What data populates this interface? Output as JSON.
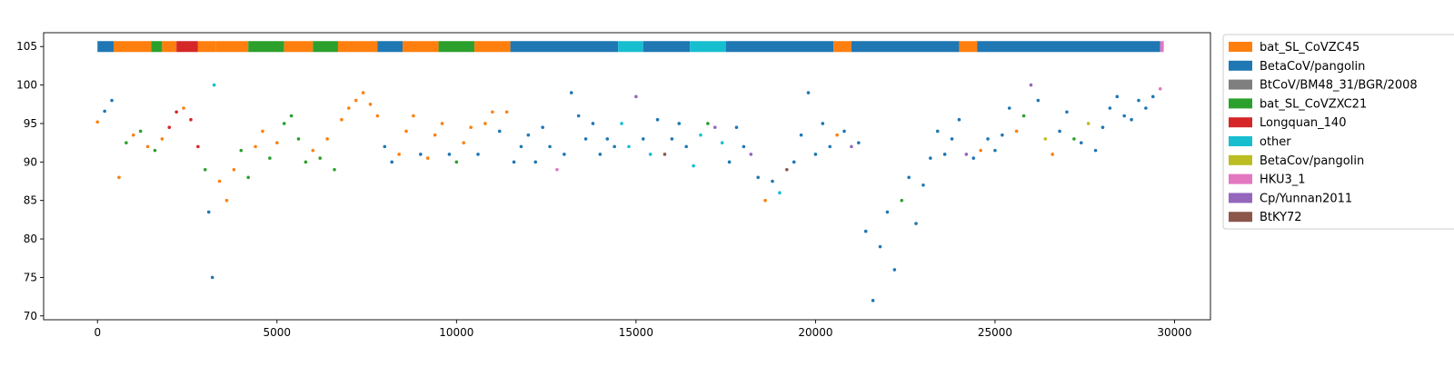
{
  "chart_data": {
    "type": "scatter",
    "title": "",
    "xlabel": "",
    "ylabel": "",
    "xlim": [
      -1500,
      31000
    ],
    "ylim": [
      69.5,
      106.8
    ],
    "xticks": [
      0,
      5000,
      10000,
      15000,
      20000,
      25000,
      30000
    ],
    "yticks": [
      70,
      75,
      80,
      85,
      90,
      95,
      100,
      105
    ],
    "legend_position": "outside-right",
    "grid": false,
    "series": [
      {
        "name": "bat_SL_CoVZC45",
        "color": "#ff7f0e"
      },
      {
        "name": "BetaCoV/pangolin",
        "color": "#1f77b4"
      },
      {
        "name": "BtCoV/BM48_31/BGR/2008",
        "color": "#7f7f7f"
      },
      {
        "name": "bat_SL_CoVZXC21",
        "color": "#2ca02c"
      },
      {
        "name": "Longquan_140",
        "color": "#d62728"
      },
      {
        "name": "other",
        "color": "#17becf"
      },
      {
        "name": "BetaCov/pangolin",
        "color": "#bcbd22"
      },
      {
        "name": "HKU3_1",
        "color": "#e377c2"
      },
      {
        "name": "Cp/Yunnan2011",
        "color": "#9467bd"
      },
      {
        "name": "BtKY72",
        "color": "#8c564b"
      }
    ],
    "bar_level": 105,
    "bar_segments": [
      [
        0,
        450,
        1
      ],
      [
        450,
        1500,
        0
      ],
      [
        1500,
        1800,
        3
      ],
      [
        1800,
        2200,
        0
      ],
      [
        2200,
        2800,
        4
      ],
      [
        2800,
        3300,
        0
      ],
      [
        3300,
        4200,
        0
      ],
      [
        4200,
        5200,
        3
      ],
      [
        5200,
        6000,
        0
      ],
      [
        6000,
        6700,
        3
      ],
      [
        6700,
        7800,
        0
      ],
      [
        7800,
        8500,
        1
      ],
      [
        8500,
        9500,
        0
      ],
      [
        9500,
        10500,
        3
      ],
      [
        10500,
        11500,
        0
      ],
      [
        11500,
        14500,
        1
      ],
      [
        14500,
        15200,
        5
      ],
      [
        15200,
        16500,
        1
      ],
      [
        16500,
        17500,
        5
      ],
      [
        17500,
        20500,
        1
      ],
      [
        20500,
        21000,
        0
      ],
      [
        21000,
        24000,
        1
      ],
      [
        24000,
        24500,
        0
      ],
      [
        24500,
        29600,
        1
      ],
      [
        29600,
        29700,
        7
      ]
    ],
    "points": [
      [
        0,
        95.2,
        0
      ],
      [
        200,
        96.6,
        1
      ],
      [
        400,
        98.0,
        1
      ],
      [
        600,
        88.0,
        0
      ],
      [
        800,
        92.5,
        3
      ],
      [
        1000,
        93.5,
        0
      ],
      [
        1200,
        94.0,
        3
      ],
      [
        1400,
        92.0,
        0
      ],
      [
        1600,
        91.5,
        3
      ],
      [
        1800,
        93.0,
        0
      ],
      [
        2000,
        94.5,
        4
      ],
      [
        2200,
        96.5,
        4
      ],
      [
        2400,
        97.0,
        0
      ],
      [
        2600,
        95.5,
        4
      ],
      [
        2800,
        92.0,
        4
      ],
      [
        3000,
        89.0,
        3
      ],
      [
        3100,
        83.5,
        1
      ],
      [
        3200,
        75.0,
        1
      ],
      [
        3250,
        100.0,
        5
      ],
      [
        3400,
        87.5,
        0
      ],
      [
        3600,
        85.0,
        0
      ],
      [
        3800,
        89.0,
        0
      ],
      [
        4000,
        91.5,
        3
      ],
      [
        4200,
        88.0,
        3
      ],
      [
        4400,
        92.0,
        0
      ],
      [
        4600,
        94.0,
        0
      ],
      [
        4800,
        90.5,
        3
      ],
      [
        5000,
        92.5,
        0
      ],
      [
        5200,
        95.0,
        3
      ],
      [
        5400,
        96.0,
        3
      ],
      [
        5600,
        93.0,
        3
      ],
      [
        5800,
        90.0,
        3
      ],
      [
        6000,
        91.5,
        0
      ],
      [
        6200,
        90.5,
        3
      ],
      [
        6400,
        93.0,
        0
      ],
      [
        6600,
        89.0,
        3
      ],
      [
        6800,
        95.5,
        0
      ],
      [
        7000,
        97.0,
        0
      ],
      [
        7200,
        98.0,
        0
      ],
      [
        7400,
        99.0,
        0
      ],
      [
        7600,
        97.5,
        0
      ],
      [
        7800,
        96.0,
        0
      ],
      [
        8000,
        92.0,
        1
      ],
      [
        8200,
        90.0,
        1
      ],
      [
        8400,
        91.0,
        0
      ],
      [
        8600,
        94.0,
        0
      ],
      [
        8800,
        96.0,
        0
      ],
      [
        9000,
        91.0,
        1
      ],
      [
        9200,
        90.5,
        0
      ],
      [
        9400,
        93.5,
        0
      ],
      [
        9600,
        95.0,
        0
      ],
      [
        9800,
        91.0,
        1
      ],
      [
        10000,
        90.0,
        3
      ],
      [
        10200,
        92.5,
        0
      ],
      [
        10400,
        94.5,
        0
      ],
      [
        10600,
        91.0,
        1
      ],
      [
        10800,
        95.0,
        0
      ],
      [
        11000,
        96.5,
        0
      ],
      [
        11200,
        94.0,
        1
      ],
      [
        11400,
        96.5,
        0
      ],
      [
        11600,
        90.0,
        1
      ],
      [
        11800,
        92.0,
        1
      ],
      [
        12000,
        93.5,
        1
      ],
      [
        12200,
        90.0,
        1
      ],
      [
        12400,
        94.5,
        1
      ],
      [
        12600,
        92.0,
        1
      ],
      [
        12800,
        89.0,
        7
      ],
      [
        13000,
        91.0,
        1
      ],
      [
        13200,
        99.0,
        1
      ],
      [
        13400,
        96.0,
        1
      ],
      [
        13600,
        93.0,
        1
      ],
      [
        13800,
        95.0,
        1
      ],
      [
        14000,
        91.0,
        1
      ],
      [
        14200,
        93.0,
        1
      ],
      [
        14400,
        92.0,
        1
      ],
      [
        14600,
        95.0,
        5
      ],
      [
        14800,
        92.0,
        5
      ],
      [
        15000,
        98.5,
        8
      ],
      [
        15200,
        93.0,
        1
      ],
      [
        15400,
        91.0,
        5
      ],
      [
        15600,
        95.5,
        1
      ],
      [
        15800,
        91.0,
        9
      ],
      [
        16000,
        93.0,
        1
      ],
      [
        16200,
        95.0,
        1
      ],
      [
        16400,
        92.0,
        1
      ],
      [
        16600,
        89.5,
        5
      ],
      [
        16800,
        93.5,
        5
      ],
      [
        17000,
        95.0,
        3
      ],
      [
        17200,
        94.5,
        8
      ],
      [
        17400,
        92.5,
        5
      ],
      [
        17600,
        90.0,
        1
      ],
      [
        17800,
        94.5,
        1
      ],
      [
        18000,
        92.0,
        1
      ],
      [
        18200,
        91.0,
        8
      ],
      [
        18400,
        88.0,
        1
      ],
      [
        18600,
        85.0,
        0
      ],
      [
        18800,
        87.5,
        1
      ],
      [
        19000,
        86.0,
        5
      ],
      [
        19200,
        89.0,
        9
      ],
      [
        19400,
        90.0,
        1
      ],
      [
        19600,
        93.5,
        1
      ],
      [
        19800,
        99.0,
        1
      ],
      [
        20000,
        91.0,
        1
      ],
      [
        20200,
        95.0,
        1
      ],
      [
        20400,
        92.0,
        1
      ],
      [
        20600,
        93.5,
        0
      ],
      [
        20800,
        94.0,
        1
      ],
      [
        21000,
        92.0,
        8
      ],
      [
        21200,
        92.5,
        1
      ],
      [
        21400,
        81.0,
        1
      ],
      [
        21600,
        72.0,
        1
      ],
      [
        21800,
        79.0,
        1
      ],
      [
        22000,
        83.5,
        1
      ],
      [
        22200,
        76.0,
        1
      ],
      [
        22400,
        85.0,
        3
      ],
      [
        22600,
        88.0,
        1
      ],
      [
        22800,
        82.0,
        1
      ],
      [
        23000,
        87.0,
        1
      ],
      [
        23200,
        90.5,
        1
      ],
      [
        23400,
        94.0,
        1
      ],
      [
        23600,
        91.0,
        1
      ],
      [
        23800,
        93.0,
        1
      ],
      [
        24000,
        95.5,
        1
      ],
      [
        24200,
        91.0,
        8
      ],
      [
        24400,
        90.5,
        1
      ],
      [
        24600,
        91.5,
        0
      ],
      [
        24800,
        93.0,
        1
      ],
      [
        25000,
        91.5,
        1
      ],
      [
        25200,
        93.5,
        1
      ],
      [
        25400,
        97.0,
        1
      ],
      [
        25600,
        94.0,
        0
      ],
      [
        25800,
        96.0,
        3
      ],
      [
        26000,
        100.0,
        8
      ],
      [
        26200,
        98.0,
        1
      ],
      [
        26400,
        93.0,
        6
      ],
      [
        26600,
        91.0,
        0
      ],
      [
        26800,
        94.0,
        1
      ],
      [
        27000,
        96.5,
        1
      ],
      [
        27200,
        93.0,
        3
      ],
      [
        27400,
        92.5,
        1
      ],
      [
        27600,
        95.0,
        6
      ],
      [
        27800,
        91.5,
        1
      ],
      [
        28000,
        94.5,
        1
      ],
      [
        28200,
        97.0,
        1
      ],
      [
        28400,
        98.5,
        1
      ],
      [
        28600,
        96.0,
        1
      ],
      [
        28800,
        95.5,
        1
      ],
      [
        29000,
        98.0,
        1
      ],
      [
        29200,
        97.0,
        1
      ],
      [
        29400,
        98.5,
        1
      ],
      [
        29600,
        99.5,
        7
      ]
    ]
  }
}
